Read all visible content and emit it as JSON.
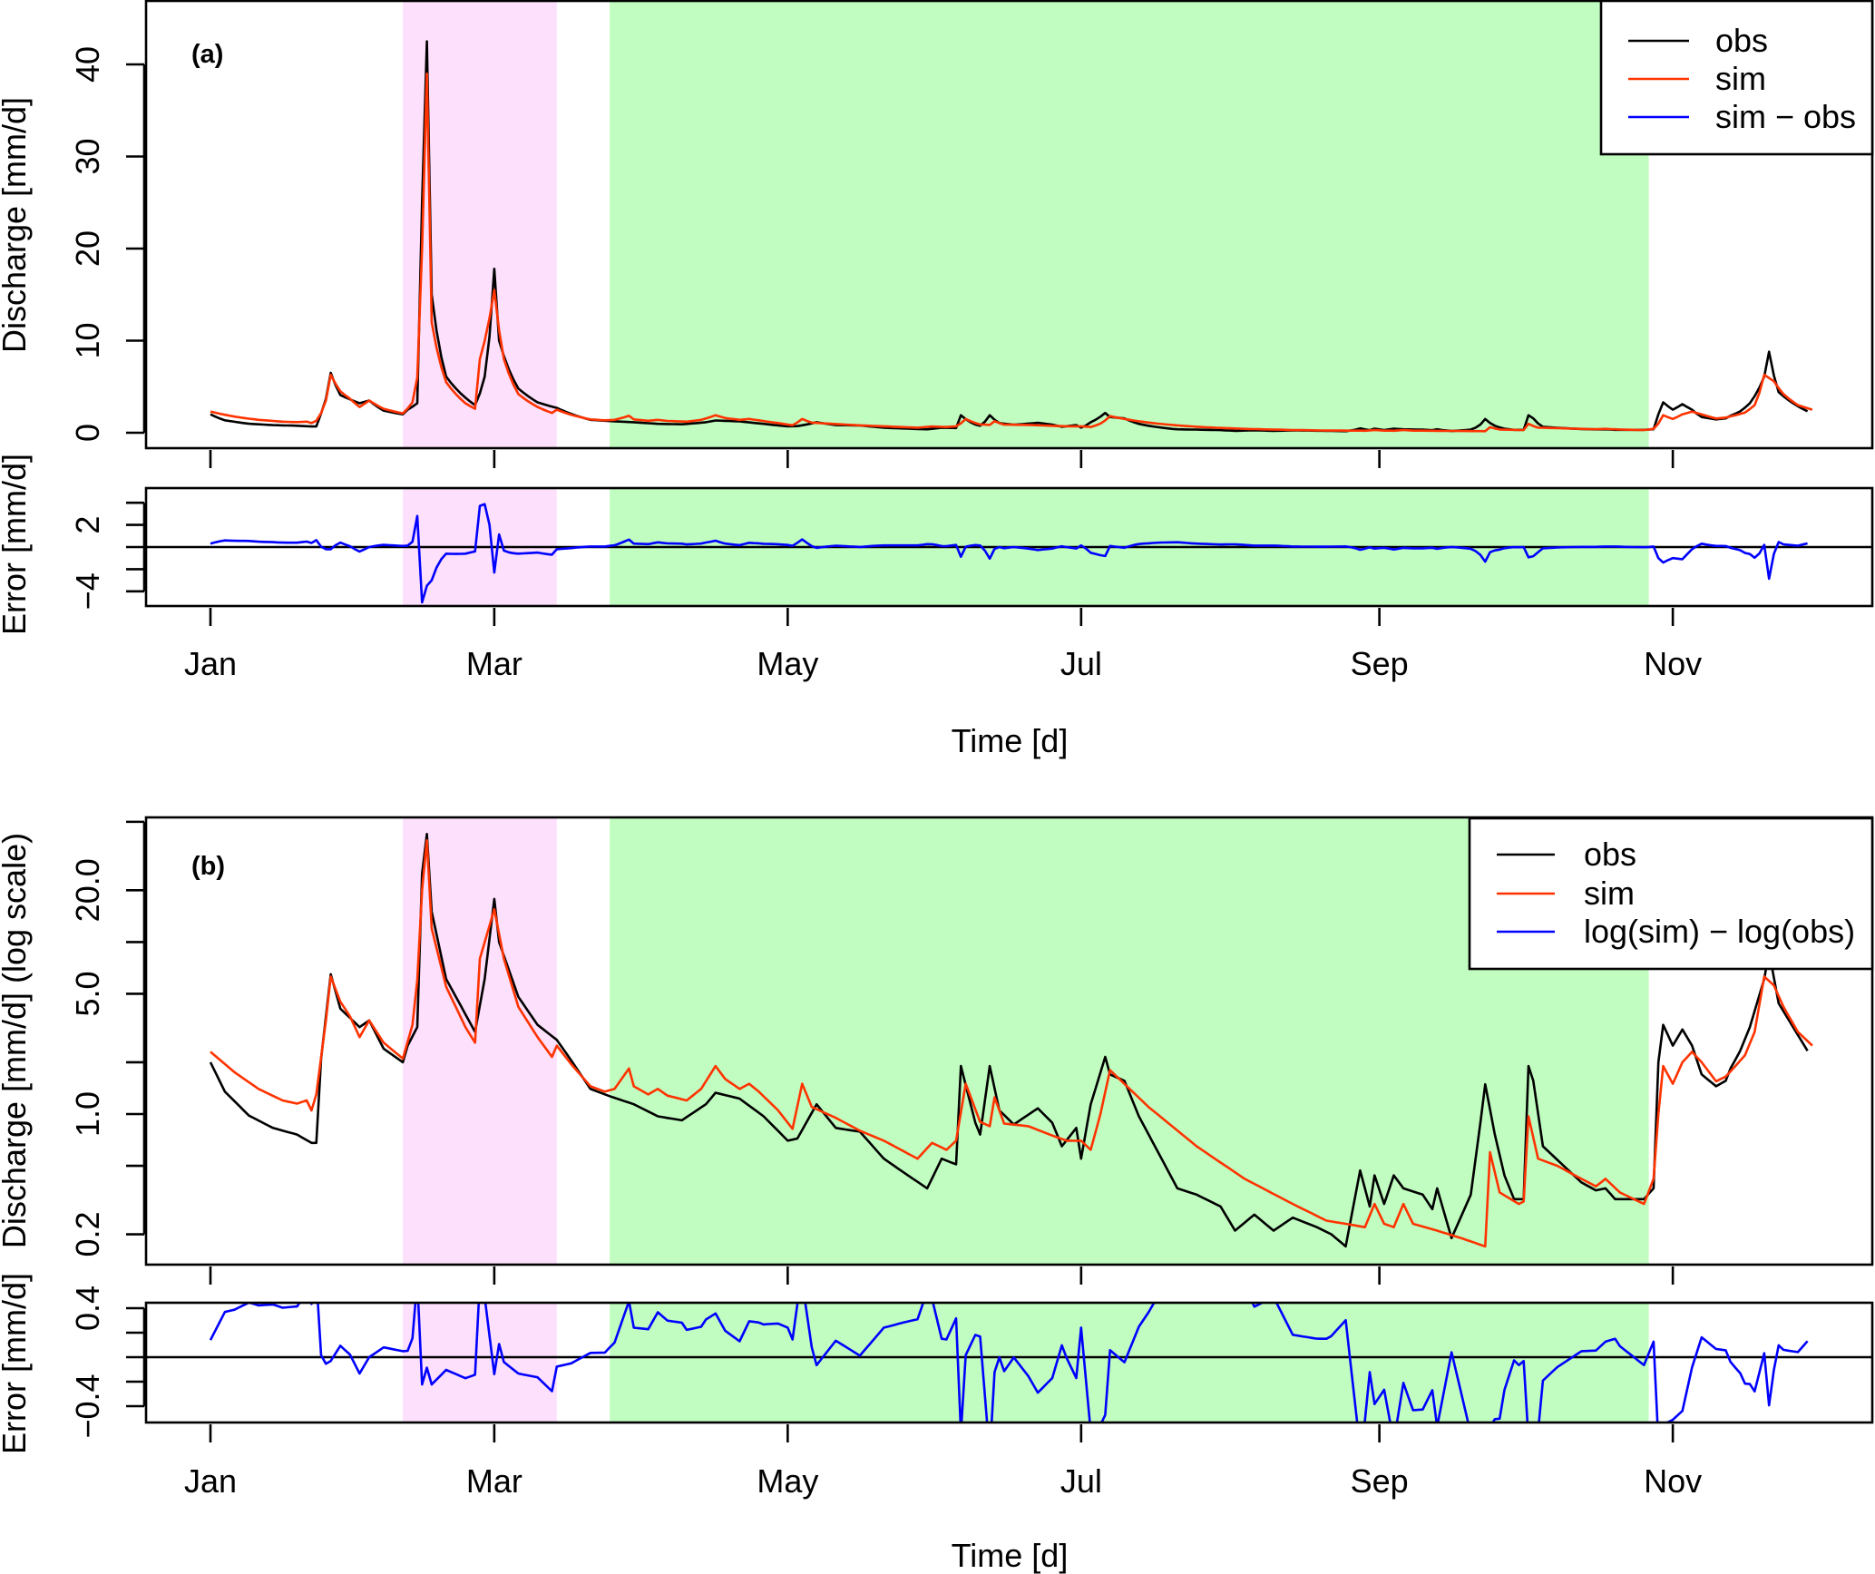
{
  "chart_data": [
    {
      "type": "line",
      "panel": "(a)",
      "ylabel": "Discharge [mm/d]",
      "xlabel": "Time [d]",
      "ylim": [
        0,
        42
      ],
      "yticks": [
        0,
        10,
        20,
        30,
        40
      ],
      "ytick_labels": [
        "0",
        "10",
        "20",
        "30",
        "40"
      ],
      "legend": [
        "obs",
        "sim",
        "sim − obs"
      ],
      "legend_position": "top-right",
      "error_panel": {
        "ylabel": "Error [mm/d]",
        "ylim": [
          -5,
          5
        ],
        "yticks": [
          -4,
          -2,
          0,
          2,
          4
        ],
        "ytick_labels": {
          "2": "2",
          "-4": "−4"
        },
        "series": "sim - obs"
      },
      "scale": "linear"
    },
    {
      "type": "line",
      "panel": "(b)",
      "ylabel": "Discharge [mm/d] (log scale)",
      "xlabel": "Time [d]",
      "ylim": [
        0.15,
        45
      ],
      "yticks": [
        0.2,
        0.5,
        1,
        2,
        5,
        10,
        20,
        50
      ],
      "ytick_labels": {
        "0.2": "0.2",
        "1": "1.0",
        "5": "5.0",
        "20": "20.0"
      },
      "legend": [
        "obs",
        "sim",
        "log(sim) − log(obs)"
      ],
      "legend_position": "top-right",
      "error_panel": {
        "ylabel": "Error [mm/d]",
        "ylim": [
          -0.5,
          0.5
        ],
        "yticks": [
          -0.4,
          -0.2,
          0,
          0.2,
          0.4
        ],
        "ytick_labels": {
          "0.4": "0.4",
          "-0.4": "−0.4"
        },
        "series": "log(sim) - log(obs)"
      },
      "scale": "log"
    }
  ],
  "shared": {
    "x_unit": "day of year",
    "x_ticks": [
      0,
      59,
      120,
      181,
      243,
      304
    ],
    "x_tick_labels": [
      "Jan",
      "Mar",
      "May",
      "Jul",
      "Sep",
      "Nov"
    ],
    "shaded_periods": [
      {
        "name": "pink-period",
        "start_day": 40,
        "end_day": 72,
        "color": "#fde0fb"
      },
      {
        "name": "green-period",
        "start_day": 83,
        "end_day": 299,
        "color": "#c1fdc1"
      }
    ],
    "colors": {
      "obs": "#000000",
      "sim": "#ff3300",
      "error": "#0000ff"
    },
    "obs": [
      [
        0,
        2.0
      ],
      [
        3,
        1.35
      ],
      [
        8,
        0.98
      ],
      [
        13,
        0.83
      ],
      [
        18,
        0.76
      ],
      [
        21,
        0.68
      ],
      [
        22,
        0.68
      ],
      [
        23,
        2.1
      ],
      [
        25,
        6.5
      ],
      [
        27,
        4.1
      ],
      [
        31,
        3.2
      ],
      [
        33,
        3.5
      ],
      [
        36,
        2.4
      ],
      [
        40,
        2.0
      ],
      [
        41,
        2.5
      ],
      [
        43,
        3.2
      ],
      [
        44,
        25
      ],
      [
        45,
        42.5
      ],
      [
        46,
        15
      ],
      [
        49,
        6.1
      ],
      [
        53,
        3.8
      ],
      [
        55,
        3.0
      ],
      [
        57,
        6.1
      ],
      [
        59,
        17.8
      ],
      [
        60,
        10
      ],
      [
        64,
        4.8
      ],
      [
        68,
        3.3
      ],
      [
        72,
        2.7
      ],
      [
        75,
        2.05
      ],
      [
        79,
        1.4
      ],
      [
        83,
        1.27
      ],
      [
        88,
        1.14
      ],
      [
        93,
        0.97
      ],
      [
        98,
        0.92
      ],
      [
        103,
        1.14
      ],
      [
        105,
        1.33
      ],
      [
        110,
        1.23
      ],
      [
        115,
        0.97
      ],
      [
        120,
        0.7
      ],
      [
        122,
        0.72
      ],
      [
        126,
        1.14
      ],
      [
        130,
        0.83
      ],
      [
        135,
        0.79
      ],
      [
        140,
        0.55
      ],
      [
        145,
        0.44
      ],
      [
        149,
        0.37
      ],
      [
        152,
        0.55
      ],
      [
        155,
        0.51
      ],
      [
        156,
        1.9
      ],
      [
        159,
        0.89
      ],
      [
        160,
        0.76
      ],
      [
        162,
        1.9
      ],
      [
        164,
        1.05
      ],
      [
        167,
        0.87
      ],
      [
        172,
        1.08
      ],
      [
        175,
        0.89
      ],
      [
        177,
        0.65
      ],
      [
        180,
        0.83
      ],
      [
        181,
        0.55
      ],
      [
        183,
        1.14
      ],
      [
        186,
        2.15
      ],
      [
        187,
        1.7
      ],
      [
        190,
        1.56
      ],
      [
        193,
        0.97
      ],
      [
        197,
        0.6
      ],
      [
        201,
        0.37
      ],
      [
        205,
        0.34
      ],
      [
        210,
        0.29
      ],
      [
        213,
        0.21
      ],
      [
        217,
        0.26
      ],
      [
        221,
        0.21
      ],
      [
        225,
        0.25
      ],
      [
        230,
        0.22
      ],
      [
        233,
        0.2
      ],
      [
        236,
        0.17
      ],
      [
        239,
        0.47
      ],
      [
        241,
        0.29
      ],
      [
        242,
        0.44
      ],
      [
        244,
        0.3
      ],
      [
        246,
        0.44
      ],
      [
        248,
        0.37
      ],
      [
        252,
        0.34
      ],
      [
        254,
        0.28
      ],
      [
        255,
        0.37
      ],
      [
        258,
        0.19
      ],
      [
        262,
        0.34
      ],
      [
        264,
        0.89
      ],
      [
        265,
        1.49
      ],
      [
        267,
        0.76
      ],
      [
        269,
        0.44
      ],
      [
        271,
        0.32
      ],
      [
        273,
        0.32
      ],
      [
        274,
        1.9
      ],
      [
        275,
        1.56
      ],
      [
        277,
        0.65
      ],
      [
        281,
        0.51
      ],
      [
        285,
        0.4
      ],
      [
        288,
        0.36
      ],
      [
        290,
        0.37
      ],
      [
        292,
        0.32
      ],
      [
        298,
        0.32
      ],
      [
        300,
        0.37
      ],
      [
        301,
        2.0
      ],
      [
        302,
        3.3
      ],
      [
        304,
        2.5
      ],
      [
        306,
        3.1
      ],
      [
        308,
        2.5
      ],
      [
        310,
        1.7
      ],
      [
        313,
        1.45
      ],
      [
        315,
        1.56
      ],
      [
        316,
        1.84
      ],
      [
        318,
        2.33
      ],
      [
        320,
        3.2
      ],
      [
        323,
        6.1
      ],
      [
        324,
        8.8
      ],
      [
        326,
        4.4
      ],
      [
        329,
        3.2
      ],
      [
        332,
        2.33
      ]
    ],
    "sim": [
      [
        0,
        2.3
      ],
      [
        5,
        1.75
      ],
      [
        10,
        1.4
      ],
      [
        15,
        1.2
      ],
      [
        18,
        1.15
      ],
      [
        20,
        1.2
      ],
      [
        21,
        1.05
      ],
      [
        22,
        1.3
      ],
      [
        24,
        3.5
      ],
      [
        25,
        6.3
      ],
      [
        27,
        4.5
      ],
      [
        29,
        3.7
      ],
      [
        31,
        2.8
      ],
      [
        33,
        3.5
      ],
      [
        36,
        2.6
      ],
      [
        40,
        2.1
      ],
      [
        42,
        3.3
      ],
      [
        43,
        6
      ],
      [
        44,
        20
      ],
      [
        45,
        39
      ],
      [
        46,
        12
      ],
      [
        49,
        5.5
      ],
      [
        53,
        3.2
      ],
      [
        55,
        2.6
      ],
      [
        56,
        8
      ],
      [
        59,
        15.5
      ],
      [
        61,
        8
      ],
      [
        64,
        4.2
      ],
      [
        68,
        2.8
      ],
      [
        71,
        2.15
      ],
      [
        72,
        2.5
      ],
      [
        75,
        1.95
      ],
      [
        79,
        1.45
      ],
      [
        82,
        1.35
      ],
      [
        84,
        1.4
      ],
      [
        87,
        1.84
      ],
      [
        88,
        1.45
      ],
      [
        91,
        1.3
      ],
      [
        93,
        1.4
      ],
      [
        95,
        1.28
      ],
      [
        99,
        1.2
      ],
      [
        102,
        1.4
      ],
      [
        105,
        1.9
      ],
      [
        107,
        1.6
      ],
      [
        110,
        1.4
      ],
      [
        112,
        1.5
      ],
      [
        114,
        1.35
      ],
      [
        118,
        1.05
      ],
      [
        121,
        0.82
      ],
      [
        123,
        1.5
      ],
      [
        125,
        1.1
      ],
      [
        130,
        0.95
      ],
      [
        135,
        0.8
      ],
      [
        140,
        0.7
      ],
      [
        147,
        0.55
      ],
      [
        150,
        0.68
      ],
      [
        153,
        0.62
      ],
      [
        155,
        0.7
      ],
      [
        157,
        1.5
      ],
      [
        160,
        0.9
      ],
      [
        162,
        0.85
      ],
      [
        163,
        1.25
      ],
      [
        165,
        0.88
      ],
      [
        170,
        0.85
      ],
      [
        175,
        0.75
      ],
      [
        178,
        0.7
      ],
      [
        181,
        0.7
      ],
      [
        183,
        0.62
      ],
      [
        185,
        1.0
      ],
      [
        187,
        1.8
      ],
      [
        195,
        1.1
      ],
      [
        205,
        0.65
      ],
      [
        215,
        0.42
      ],
      [
        225,
        0.3
      ],
      [
        232,
        0.24
      ],
      [
        236,
        0.23
      ],
      [
        240,
        0.22
      ],
      [
        242,
        0.3
      ],
      [
        244,
        0.23
      ],
      [
        246,
        0.22
      ],
      [
        248,
        0.3
      ],
      [
        250,
        0.23
      ],
      [
        255,
        0.21
      ],
      [
        260,
        0.19
      ],
      [
        265,
        0.17
      ],
      [
        266,
        0.6
      ],
      [
        268,
        0.35
      ],
      [
        272,
        0.3
      ],
      [
        273,
        0.31
      ],
      [
        274,
        0.97
      ],
      [
        276,
        0.55
      ],
      [
        280,
        0.5
      ],
      [
        285,
        0.42
      ],
      [
        288,
        0.38
      ],
      [
        290,
        0.42
      ],
      [
        293,
        0.35
      ],
      [
        298,
        0.3
      ],
      [
        300,
        0.42
      ],
      [
        301,
        1.0
      ],
      [
        302,
        1.9
      ],
      [
        304,
        1.5
      ],
      [
        306,
        2.0
      ],
      [
        308,
        2.3
      ],
      [
        310,
        2.0
      ],
      [
        313,
        1.55
      ],
      [
        315,
        1.65
      ],
      [
        317,
        1.9
      ],
      [
        319,
        2.2
      ],
      [
        321,
        3.0
      ],
      [
        323,
        6.3
      ],
      [
        325,
        5.6
      ],
      [
        327,
        4.2
      ],
      [
        330,
        3.0
      ],
      [
        333,
        2.5
      ]
    ]
  },
  "labels": {
    "panel_a_tag": "(a)",
    "panel_b_tag": "(b)",
    "a_ylabel": "Discharge [mm/d]",
    "a_err_ylabel": "Error [mm/d]",
    "b_ylabel": "Discharge [mm/d] (log scale)",
    "b_err_ylabel": "Error [mm/d]",
    "xlabel": "Time [d]",
    "legend_a": [
      "obs",
      "sim",
      "sim − obs"
    ],
    "legend_b": [
      "obs",
      "sim",
      "log(sim) − log(obs)"
    ]
  }
}
